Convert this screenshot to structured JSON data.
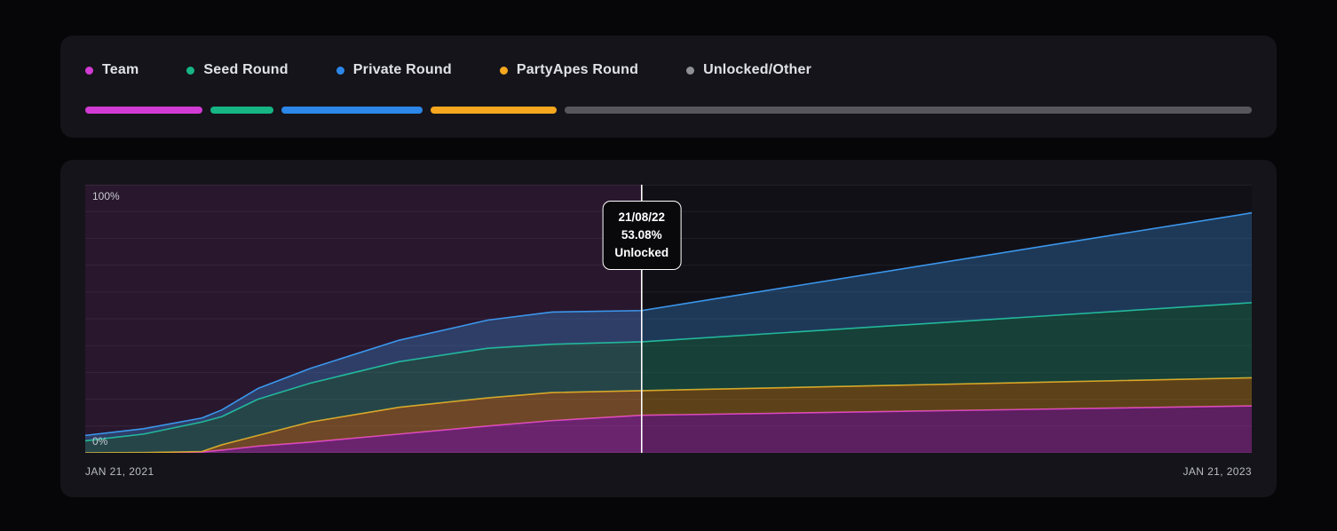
{
  "legend": {
    "items": [
      {
        "label": "Team",
        "color": "#d13bd3",
        "percent": 10.3
      },
      {
        "label": "Seed Round",
        "color": "#16b583",
        "percent": 5.6
      },
      {
        "label": "Private Round",
        "color": "#2c87e8",
        "percent": 12.4
      },
      {
        "label": "PartyApes Round",
        "color": "#f5a71f",
        "percent": 11.1
      },
      {
        "label": "Unlocked/Other",
        "color": "#56565c",
        "dot_color": "#8f8f96",
        "percent": 60.6
      }
    ]
  },
  "chart": {
    "y_top_label": "100%",
    "y_bottom_label": "0%",
    "x_left_label": "JAN 21, 2021",
    "x_right_label": "JAN 21, 2023",
    "cursor_x": 0.477,
    "tooltip": {
      "date": "21/08/22",
      "percent": "53.08%",
      "status": "Unlocked"
    }
  },
  "chart_data": {
    "type": "area",
    "stacked": true,
    "ylim": [
      0,
      100
    ],
    "y_tick_labels": [
      "0%",
      "100%"
    ],
    "x_axis": {
      "start_label": "JAN 21, 2021",
      "end_label": "JAN 21, 2023"
    },
    "grid": true,
    "legend_position": "top",
    "x": [
      0,
      0.05,
      0.1,
      0.117,
      0.148,
      0.193,
      0.269,
      0.345,
      0.4,
      0.477,
      1.0
    ],
    "values_note": "cumulative percent of supply unlocked, stacked bottom-to-top",
    "series": [
      {
        "name": "Team",
        "stroke": "#d63ad6",
        "fill": "rgba(214,58,214,0.38)",
        "cumulative": [
          0,
          0,
          0.3,
          1.0,
          2.5,
          4.0,
          7.0,
          10.0,
          12.0,
          14.0,
          17.5
        ]
      },
      {
        "name": "PartyApes Round",
        "stroke": "#f0a51c",
        "fill": "rgba(240,165,28,0.34)",
        "cumulative": [
          0,
          0.1,
          0.5,
          3.0,
          6.5,
          11.5,
          17.0,
          20.5,
          22.5,
          23.2,
          28.0
        ]
      },
      {
        "name": "Seed Round",
        "stroke": "#1fbd8f",
        "fill": "rgba(31,189,143,0.28)",
        "cumulative": [
          4.5,
          7.0,
          11.5,
          13.5,
          20.0,
          26.0,
          34.0,
          39.0,
          40.5,
          41.4,
          56.0
        ]
      },
      {
        "name": "Private Round",
        "stroke": "#3b97ec",
        "fill": "rgba(59,151,236,0.30)",
        "cumulative": [
          6.5,
          9.0,
          13.0,
          16.0,
          24.0,
          31.5,
          42.0,
          49.5,
          52.5,
          53.08,
          89.5
        ]
      }
    ],
    "cursor": {
      "x": 0.477,
      "date": "21/08/22",
      "value": "53.08%",
      "status": "Unlocked"
    },
    "layout": {
      "plot_bg": "#121017",
      "highlight_fill": "rgba(214,70,214,0.12)",
      "grid_color": "rgba(255,255,255,0.06)",
      "axis_line_color": "rgba(255,255,255,0.14)",
      "cursor_color": "#ffffff"
    }
  }
}
